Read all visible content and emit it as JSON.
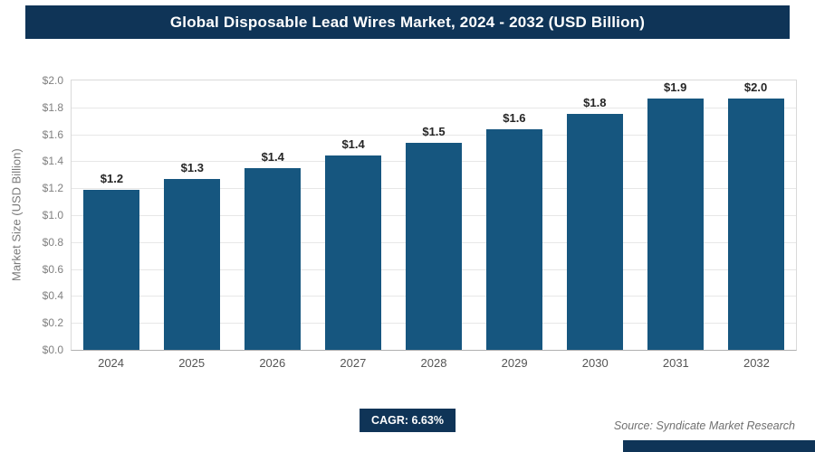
{
  "header": {
    "title": "Global Disposable Lead Wires Market, 2024 - 2032 (USD Billion)"
  },
  "chart_data": {
    "type": "bar",
    "title": "Global Disposable Lead Wires Market, 2024 - 2032 (USD Billion)",
    "categories": [
      "2024",
      "2025",
      "2026",
      "2027",
      "2028",
      "2029",
      "2030",
      "2031",
      "2032"
    ],
    "values": [
      1.19,
      1.27,
      1.35,
      1.44,
      1.54,
      1.64,
      1.75,
      1.87,
      1.99
    ],
    "labels": [
      "$1.2",
      "$1.3",
      "$1.4",
      "$1.4",
      "$1.5",
      "$1.6",
      "$1.8",
      "$1.9",
      "$2.0"
    ],
    "xlabel": "",
    "ylabel": "Market Size (USD Billion)",
    "ylim": [
      0,
      2.0
    ],
    "ytick_step": 0.2,
    "ytick_labels": [
      "$0.0",
      "$0.2",
      "$0.4",
      "$0.6",
      "$0.8",
      "$1.0",
      "$1.2",
      "$1.4",
      "$1.6",
      "$1.8",
      "$2.0"
    ],
    "grid": true,
    "legend": false
  },
  "footer": {
    "cagr_label": "CAGR: 6.63%",
    "source": "Source: Syndicate Market Research"
  },
  "colors": {
    "header_bg": "#0f3457",
    "bar": "#16567f",
    "badge_bg": "#0f3457",
    "strip_bg": "#0f3457"
  }
}
